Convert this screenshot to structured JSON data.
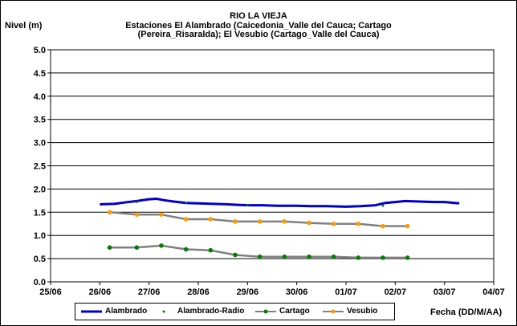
{
  "chart_data": {
    "type": "line",
    "title": "RIO LA VIEJA",
    "subtitle_lines": [
      "Estaciones El Alambrado (Caicedonia_Valle del Cauca; Cartago",
      "(Pereira_Risaralda);  El Vesubio (Cartago_Valle del Cauca)"
    ],
    "ylabel": "Nivel (m)",
    "xlabel": "Fecha (DD/M/AA)",
    "ylim": [
      0,
      5
    ],
    "yticks": [
      "0.0",
      "0.5",
      "1.0",
      "1.5",
      "2.0",
      "2.5",
      "3.0",
      "3.5",
      "4.0",
      "4.5",
      "5.0"
    ],
    "xlim": [
      0,
      9
    ],
    "xticks": [
      "25/06",
      "26/06",
      "27/06",
      "28/06",
      "29/06",
      "30/06",
      "01/07",
      "02/07",
      "03/07",
      "04/07"
    ],
    "grid": "horizontal",
    "legend_position": "bottom",
    "series": [
      {
        "name": "Alambrado",
        "color": "#0000cc",
        "style": "thick-line",
        "x": [
          1.0,
          1.3,
          1.5,
          1.75,
          2.0,
          2.15,
          2.3,
          2.5,
          2.75,
          3.0,
          3.3,
          3.6,
          3.8,
          4.0,
          4.3,
          4.6,
          5.0,
          5.3,
          5.6,
          6.0,
          6.3,
          6.6,
          6.8,
          7.0,
          7.2,
          7.5,
          7.8,
          8.0,
          8.3
        ],
        "y": [
          1.67,
          1.68,
          1.71,
          1.74,
          1.78,
          1.79,
          1.76,
          1.73,
          1.7,
          1.69,
          1.68,
          1.67,
          1.66,
          1.65,
          1.65,
          1.64,
          1.64,
          1.63,
          1.63,
          1.62,
          1.63,
          1.65,
          1.7,
          1.72,
          1.74,
          1.73,
          1.72,
          1.72,
          1.69
        ]
      },
      {
        "name": "Alambrado-Radio",
        "color": "#008000",
        "style": "dots",
        "x": [
          1.75,
          2.75,
          4.0,
          6.75
        ],
        "y": [
          1.72,
          1.7,
          1.65,
          1.64
        ]
      },
      {
        "name": "Cartago",
        "color": "#808080",
        "marker_color": "#008000",
        "style": "line-markers",
        "x": [
          1.2,
          1.75,
          2.25,
          2.75,
          3.25,
          3.75,
          4.25,
          4.75,
          5.25,
          5.75,
          6.25,
          6.75,
          7.25
        ],
        "y": [
          0.74,
          0.74,
          0.78,
          0.7,
          0.68,
          0.58,
          0.54,
          0.54,
          0.54,
          0.54,
          0.52,
          0.52,
          0.52
        ]
      },
      {
        "name": "Vesubio",
        "color": "#808080",
        "marker_color": "#ff9900",
        "style": "line-markers",
        "x": [
          1.2,
          1.75,
          2.25,
          2.75,
          3.25,
          3.75,
          4.25,
          4.75,
          5.25,
          5.75,
          6.25,
          6.75,
          7.25
        ],
        "y": [
          1.5,
          1.45,
          1.45,
          1.35,
          1.35,
          1.3,
          1.3,
          1.3,
          1.27,
          1.25,
          1.25,
          1.2,
          1.2
        ]
      }
    ]
  }
}
